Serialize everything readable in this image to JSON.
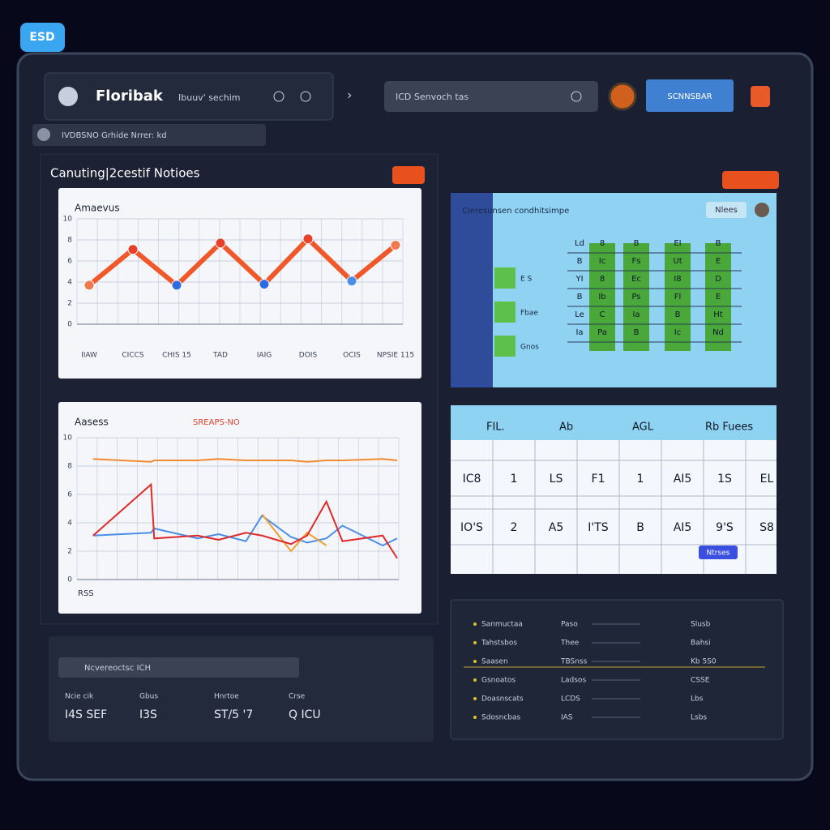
{
  "badge": "ESD",
  "header": {
    "logo": "Floribak",
    "subtitle": "Ibuuv' sechim",
    "search": "ICD   Senvoch tas",
    "button": "SCNNSBAR"
  },
  "tabs": {
    "text": "IVDBSNO   Grhide   Nrrer: kd"
  },
  "section": {
    "title": "Canuting|2cestif Notioes"
  },
  "chart_data": [
    {
      "type": "line",
      "title": "Amaevus",
      "color": "#f0582a",
      "marker_colors": [
        "#f07a50",
        "#e8402a",
        "#2e6be0",
        "#e8402a",
        "#2e6be0",
        "#e8402a",
        "#4a8ee8",
        "#f07a50"
      ],
      "categories": [
        "IIAW",
        "CICCS",
        "CHIS 15",
        "TAD",
        "IAIG",
        "DOIS",
        "OCIS",
        "NPSIE 115"
      ],
      "values": [
        3.7,
        7.1,
        3.7,
        7.7,
        3.8,
        8.1,
        4.1,
        7.5
      ],
      "ylim": [
        0,
        10
      ],
      "yticks": [
        0,
        2,
        4,
        6,
        8,
        10
      ],
      "grid": true
    },
    {
      "type": "line",
      "title": "Aasess",
      "subtitle": "SREAPS-NO",
      "xlabel": "RSS",
      "x": [
        1,
        4.6,
        4.8,
        7.5,
        8.8,
        10.5,
        11.5,
        13.3,
        14.3,
        15.5,
        16.5,
        19,
        19.9
      ],
      "xlim": [
        0,
        20
      ],
      "series": [
        {
          "color": "#f08a30",
          "values": [
            8.5,
            8.3,
            8.4,
            8.4,
            8.5,
            8.4,
            8.4,
            8.4,
            8.3,
            8.4,
            8.4,
            8.5,
            8.4
          ]
        },
        {
          "color": "#4a8ee8",
          "values": [
            3.1,
            3.3,
            3.6,
            2.9,
            3.2,
            2.7,
            4.5,
            3.0,
            2.6,
            2.9,
            3.8,
            2.4,
            2.9
          ]
        },
        {
          "color": "#f0a030",
          "values": [
            null,
            null,
            null,
            null,
            null,
            null,
            4.6,
            2.0,
            3.3,
            2.4,
            null,
            null,
            null
          ]
        },
        {
          "color": "#e02a2a",
          "values": [
            3.1,
            6.7,
            2.9,
            3.1,
            2.8,
            3.3,
            3.1,
            2.5,
            3.1,
            5.5,
            2.7,
            3.1,
            1.5
          ]
        }
      ],
      "ylim": [
        0,
        10
      ],
      "yticks": [
        0,
        2,
        4,
        6,
        8,
        10
      ],
      "grid": true
    }
  ],
  "calendar": {
    "title": "Cleresunsen condhitsimpe",
    "button": "Nlees",
    "sidebar": [
      "E S",
      "Fbae",
      "Gnos"
    ],
    "rows": [
      [
        "Ld",
        "8",
        "B",
        "EI",
        "B"
      ],
      [
        "B",
        "Ic",
        "Fs",
        "Ut",
        "E"
      ],
      [
        "YI",
        "8",
        "Ec",
        "I8",
        "D"
      ],
      [
        "B",
        "Ib",
        "Ps",
        "Fl",
        "E"
      ],
      [
        "Le",
        "C",
        "Ia",
        "B",
        "Ht"
      ],
      [
        "Ia",
        "Pa",
        "B",
        "Ic",
        "Nd"
      ]
    ]
  },
  "table": {
    "columns": [
      "FIL.",
      "Ab",
      "AGL",
      "Rb Fuees"
    ],
    "rows": [
      [
        "IC8",
        "1",
        "LS",
        "F1",
        "1",
        "AI5",
        "1S",
        "EL"
      ],
      [
        "IO'S",
        "2",
        "A5",
        "I'TS",
        "B",
        "AI5",
        "9'S",
        "S8"
      ]
    ],
    "button": "Ntrses"
  },
  "bottom_left": {
    "input": "Ncvereoctsc ICH",
    "stats": [
      {
        "label": "Ncie cik",
        "value": "I4S SEF"
      },
      {
        "label": "Gbus",
        "value": "I3S"
      },
      {
        "label": "Hnrtoe",
        "value": "ST/5 '7"
      },
      {
        "label": "Crse",
        "value": "Q ICU"
      }
    ]
  },
  "bottom_right": {
    "rows": [
      {
        "label": "Sanmuctaa",
        "v1": "Paso",
        "v2": "Slusb"
      },
      {
        "label": "Tahstsbos",
        "v1": "Thee",
        "v2": "Bahsi"
      },
      {
        "label": "Saasen",
        "v1": "TBSnss",
        "v2": "Kb 5S0"
      },
      {
        "label": "Gsnoatos",
        "v1": "Ladsos",
        "v2": "CSSE"
      },
      {
        "label": "Doasnscats",
        "v1": "LCDS",
        "v2": "Lbs"
      },
      {
        "label": "Sdosncbas",
        "v1": "IAS",
        "v2": "Lsbs"
      }
    ]
  }
}
